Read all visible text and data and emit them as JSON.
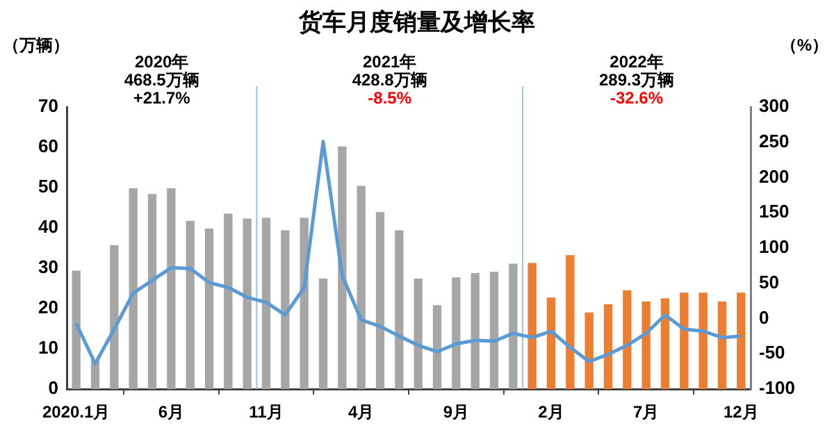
{
  "chart_data": {
    "type": "bar",
    "title": "货车月度销量及增长率",
    "ylabel": "（万辆）",
    "y2label": "（%）",
    "annotations": [
      "2020年",
      "468.5万辆",
      "+21.7%",
      "2021年",
      "428.8万辆",
      "-8.5%",
      "2022年",
      "289.3万辆",
      "-32.6%"
    ],
    "x": [
      "2020-01",
      "2020-02",
      "2020-03",
      "2020-04",
      "2020-05",
      "2020-06",
      "2020-07",
      "2020-08",
      "2020-09",
      "2020-10",
      "2020-11",
      "2020-12",
      "2021-01",
      "2021-02",
      "2021-03",
      "2021-04",
      "2021-05",
      "2021-06",
      "2021-07",
      "2021-08",
      "2021-09",
      "2021-10",
      "2021-11",
      "2021-12",
      "2022-01",
      "2022-02",
      "2022-03",
      "2022-04",
      "2022-05",
      "2022-06",
      "2022-07",
      "2022-08",
      "2022-09",
      "2022-10",
      "2022-11",
      "2022-12"
    ],
    "xlim": [
      "2019-12-16",
      "2022-12-16"
    ],
    "xticks": [
      {
        "value": "2020-01",
        "label": "2020.1月"
      },
      {
        "value": "2020-06",
        "label": "6月"
      },
      {
        "value": "2020-11",
        "label": "11月"
      },
      {
        "value": "2021-04",
        "label": "4月"
      },
      {
        "value": "2021-09",
        "label": "9月"
      },
      {
        "value": "2022-02",
        "label": "2月"
      },
      {
        "value": "2022-07",
        "label": "7月"
      },
      {
        "value": "2022-12",
        "label": "12月"
      }
    ],
    "ylim": [
      0,
      70
    ],
    "yticks": [
      0,
      10,
      20,
      30,
      40,
      50,
      60,
      70
    ],
    "y2lim": [
      -100,
      300
    ],
    "y2ticks": [
      -100,
      -50,
      0,
      50,
      100,
      150,
      200,
      250,
      300
    ],
    "series": [
      {
        "colors": [
          "#a6a6a6",
          "#a6a6a6",
          "#a6a6a6",
          "#a6a6a6",
          "#a6a6a6",
          "#a6a6a6",
          "#a6a6a6",
          "#a6a6a6",
          "#a6a6a6",
          "#a6a6a6",
          "#a6a6a6",
          "#a6a6a6",
          "#a6a6a6",
          "#a6a6a6",
          "#a6a6a6",
          "#a6a6a6",
          "#a6a6a6",
          "#a6a6a6",
          "#a6a6a6",
          "#a6a6a6",
          "#a6a6a6",
          "#a6a6a6",
          "#a6a6a6",
          "#a6a6a6",
          "#ed7d31",
          "#ed7d31",
          "#ed7d31",
          "#ed7d31",
          "#ed7d31",
          "#ed7d31",
          "#ed7d31",
          "#ed7d31",
          "#ed7d31",
          "#ed7d31",
          "#ed7d31",
          "#ed7d31"
        ],
        "values": [
          29.3,
          7,
          35.6,
          49.7,
          48.3,
          49.7,
          41.6,
          39.7,
          43.4,
          42.2,
          42.4,
          39.3,
          42.4,
          27.3,
          60.1,
          50.3,
          43.8,
          39.3,
          27.3,
          20.7,
          27.6,
          28.7,
          29,
          31,
          31.2,
          22.6,
          33.1,
          18.9,
          20.9,
          24.4,
          21.6,
          22.4,
          23.8,
          23.8,
          21.6,
          23.8
        ]
      },
      {
        "type": "line",
        "axis": "y2",
        "color": "#5b9bd5",
        "values": [
          -7,
          -64,
          -15,
          36,
          54,
          72,
          71,
          51,
          44,
          30,
          23,
          5,
          44,
          251,
          61,
          -2,
          -11,
          -25,
          -38,
          -47,
          -36,
          -31,
          -32,
          -21,
          -27,
          -18,
          -41,
          -61,
          -51,
          -38,
          -21,
          5,
          -15,
          -18,
          -27,
          -25
        ]
      }
    ],
    "ref_lines": [
      {
        "axis": "x",
        "value": "2020-10-16",
        "color": "#9dc3e6"
      },
      {
        "axis": "x",
        "value": "2021-12-16",
        "color": "#9dc3e6"
      }
    ],
    "grid": false,
    "legend": false,
    "marker": "none"
  }
}
